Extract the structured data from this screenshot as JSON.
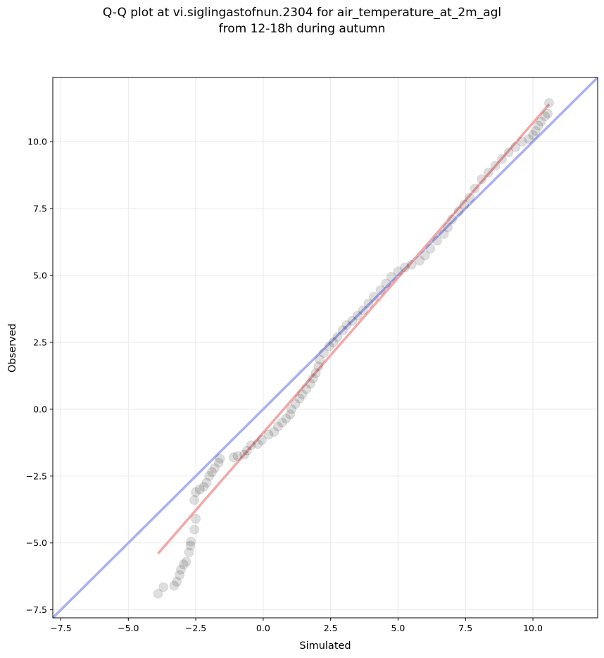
{
  "chart_data": {
    "type": "scatter",
    "title": "Q-Q plot at vi.siglingastofnun.2304 for air_temperature_at_2m_agl",
    "subtitle": "from 12-18h during autumn",
    "xlabel": "Simulated",
    "ylabel": "Observed",
    "xlim": [
      -7.8,
      12.4
    ],
    "ylim": [
      -7.8,
      12.4
    ],
    "xticks": [
      -7.5,
      -5.0,
      -2.5,
      0.0,
      2.5,
      5.0,
      7.5,
      10.0
    ],
    "yticks": [
      -7.5,
      -5.0,
      -2.5,
      0.0,
      2.5,
      5.0,
      7.5,
      10.0
    ],
    "xtick_labels": [
      "−7.5",
      "−5.0",
      "−2.5",
      "0.0",
      "2.5",
      "5.0",
      "7.5",
      "10.0"
    ],
    "ytick_labels": [
      "−7.5",
      "−5.0",
      "−2.5",
      "0.0",
      "2.5",
      "5.0",
      "7.5",
      "10.0"
    ],
    "grid": true,
    "identity_line": {
      "from": [
        -7.8,
        -7.8
      ],
      "to": [
        12.4,
        12.4
      ],
      "color": "#aab0f2"
    },
    "fit_line": {
      "from": [
        -3.9,
        -5.4
      ],
      "to": [
        10.6,
        11.4
      ],
      "color": "#f4a8a8"
    },
    "point_color": "#000000",
    "points": [
      [
        -3.9,
        -6.9
      ],
      [
        -3.7,
        -6.65
      ],
      [
        -3.3,
        -6.6
      ],
      [
        -3.2,
        -6.45
      ],
      [
        -3.1,
        -6.2
      ],
      [
        -3.05,
        -6.0
      ],
      [
        -2.95,
        -5.8
      ],
      [
        -2.85,
        -5.7
      ],
      [
        -2.75,
        -5.35
      ],
      [
        -2.7,
        -5.1
      ],
      [
        -2.68,
        -4.95
      ],
      [
        -2.55,
        -4.5
      ],
      [
        -2.5,
        -4.1
      ],
      [
        -2.55,
        -3.4
      ],
      [
        -2.5,
        -3.1
      ],
      [
        -2.35,
        -3.0
      ],
      [
        -2.2,
        -2.9
      ],
      [
        -2.1,
        -2.75
      ],
      [
        -2.0,
        -2.5
      ],
      [
        -1.9,
        -2.35
      ],
      [
        -1.8,
        -2.2
      ],
      [
        -1.65,
        -2.0
      ],
      [
        -1.6,
        -1.85
      ],
      [
        -1.1,
        -1.8
      ],
      [
        -0.95,
        -1.75
      ],
      [
        -0.7,
        -1.7
      ],
      [
        -0.6,
        -1.55
      ],
      [
        -0.45,
        -1.35
      ],
      [
        -0.2,
        -1.3
      ],
      [
        -0.05,
        -1.15
      ],
      [
        0.2,
        -0.95
      ],
      [
        0.4,
        -0.85
      ],
      [
        0.55,
        -0.65
      ],
      [
        0.7,
        -0.5
      ],
      [
        0.85,
        -0.35
      ],
      [
        1.0,
        -0.2
      ],
      [
        1.05,
        0.0
      ],
      [
        1.2,
        0.2
      ],
      [
        1.35,
        0.4
      ],
      [
        1.45,
        0.55
      ],
      [
        1.6,
        0.75
      ],
      [
        1.75,
        0.95
      ],
      [
        1.85,
        1.15
      ],
      [
        1.95,
        1.35
      ],
      [
        2.05,
        1.6
      ],
      [
        2.1,
        1.85
      ],
      [
        2.25,
        2.1
      ],
      [
        2.45,
        2.35
      ],
      [
        2.6,
        2.5
      ],
      [
        2.75,
        2.7
      ],
      [
        2.95,
        2.95
      ],
      [
        3.1,
        3.15
      ],
      [
        3.3,
        3.3
      ],
      [
        3.5,
        3.5
      ],
      [
        3.7,
        3.7
      ],
      [
        3.9,
        3.95
      ],
      [
        4.1,
        4.2
      ],
      [
        4.35,
        4.45
      ],
      [
        4.55,
        4.7
      ],
      [
        4.75,
        4.95
      ],
      [
        5.0,
        5.15
      ],
      [
        5.25,
        5.3
      ],
      [
        5.5,
        5.4
      ],
      [
        5.8,
        5.55
      ],
      [
        6.0,
        5.75
      ],
      [
        6.2,
        6.0
      ],
      [
        6.45,
        6.3
      ],
      [
        6.7,
        6.55
      ],
      [
        6.85,
        6.8
      ],
      [
        7.0,
        7.1
      ],
      [
        7.25,
        7.4
      ],
      [
        7.45,
        7.65
      ],
      [
        7.65,
        7.9
      ],
      [
        7.85,
        8.25
      ],
      [
        8.1,
        8.6
      ],
      [
        8.35,
        8.85
      ],
      [
        8.6,
        9.1
      ],
      [
        8.85,
        9.35
      ],
      [
        9.1,
        9.6
      ],
      [
        9.35,
        9.8
      ],
      [
        9.6,
        10.0
      ],
      [
        9.85,
        10.1
      ],
      [
        10.0,
        10.25
      ],
      [
        10.1,
        10.4
      ],
      [
        10.2,
        10.6
      ],
      [
        10.3,
        10.75
      ],
      [
        10.45,
        10.95
      ],
      [
        10.55,
        11.05
      ],
      [
        10.6,
        11.45
      ]
    ]
  }
}
